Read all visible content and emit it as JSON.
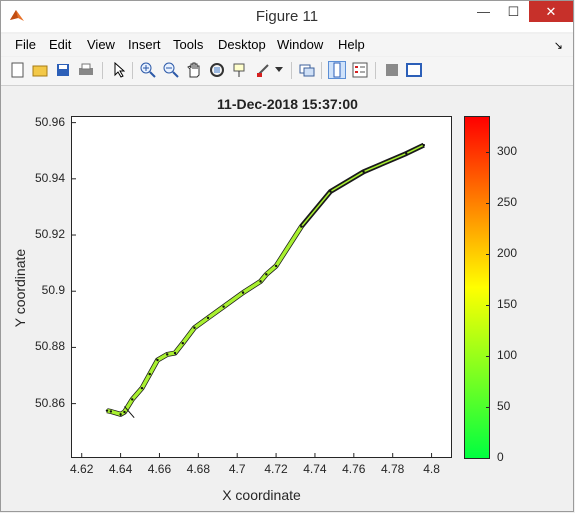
{
  "window": {
    "title": "Figure 11",
    "minimize_icon": "minimize-icon",
    "maximize_icon": "maximize-icon",
    "close_icon": "close-icon",
    "minimize_glyph": "—",
    "maximize_glyph": "☐",
    "close_glyph": "✕"
  },
  "menubar": {
    "items": [
      "File",
      "Edit",
      "View",
      "Insert",
      "Tools",
      "Desktop",
      "Window",
      "Help"
    ],
    "overflow_glyph": "↘"
  },
  "toolbar": {
    "buttons": [
      "new-figure-icon",
      "open-file-icon",
      "save-icon",
      "print-icon",
      "pointer-icon",
      "zoom-in-icon",
      "zoom-out-icon",
      "pan-icon",
      "rotate-3d-icon",
      "data-cursor-icon",
      "brush-icon",
      "dropdown-arrow-icon",
      "link-plot-icon",
      "colorbar-icon",
      "legend-icon",
      "hide-plot-tools-icon",
      "show-plot-tools-icon"
    ]
  },
  "chart_data": {
    "type": "line",
    "title": "11-Dec-2018 15:37:00",
    "xlabel": "X coordinate",
    "ylabel": "Y coordinate",
    "xlim": [
      4.615,
      4.81
    ],
    "ylim": [
      50.841,
      50.962
    ],
    "xticks": [
      "4.62",
      "4.64",
      "4.66",
      "4.68",
      "4.7",
      "4.72",
      "4.74",
      "4.76",
      "4.78",
      "4.8"
    ],
    "yticks": [
      "50.86",
      "50.88",
      "50.9",
      "50.92",
      "50.94",
      "50.96"
    ],
    "path": {
      "x": [
        4.633,
        4.635,
        4.64,
        4.642,
        4.646,
        4.651,
        4.655,
        4.659,
        4.664,
        4.668,
        4.672,
        4.678,
        4.685,
        4.693,
        4.703,
        4.712,
        4.715,
        4.72,
        4.733,
        4.748,
        4.765,
        4.787,
        4.796
      ],
      "y": [
        50.8575,
        50.8572,
        50.8562,
        50.857,
        50.8615,
        50.8655,
        50.8705,
        50.8755,
        50.8775,
        50.878,
        50.8815,
        50.887,
        50.8905,
        50.8945,
        50.8995,
        50.9035,
        50.906,
        50.909,
        50.923,
        50.9355,
        50.9425,
        50.949,
        50.952
      ]
    },
    "colorbar": {
      "ticks": [
        "0",
        "50",
        "100",
        "150",
        "200",
        "250",
        "300"
      ],
      "range": [
        0,
        334
      ],
      "colors": [
        "#00ff40",
        "#ffff00",
        "#ff0000"
      ]
    },
    "line_color": "#a8f030"
  }
}
